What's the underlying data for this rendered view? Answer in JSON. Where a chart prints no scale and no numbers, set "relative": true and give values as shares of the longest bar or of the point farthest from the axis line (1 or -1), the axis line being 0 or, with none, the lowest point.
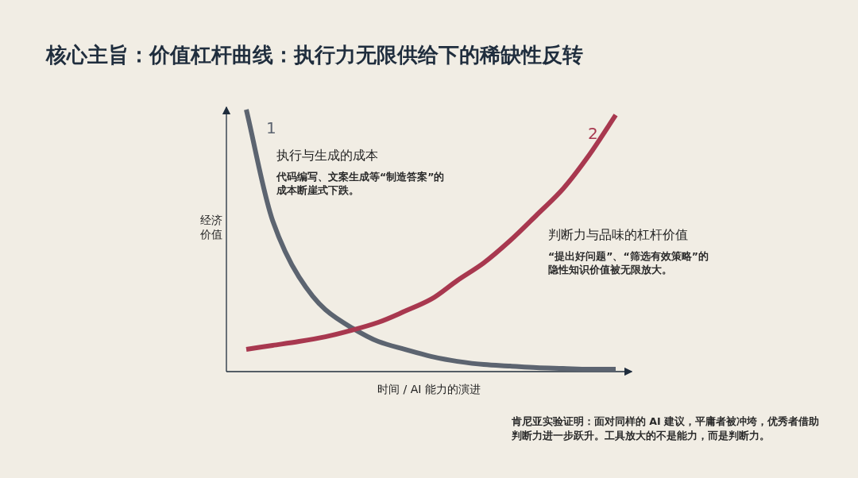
{
  "chart_data": {
    "type": "line",
    "relative": true,
    "title": "核心主旨：价值杠杆曲线：执行力无限供给下的稀缺性反转",
    "xlabel": "时间 / AI 能力的演进",
    "ylabel": "经济价值",
    "categories": [
      null,
      null,
      null,
      null,
      null,
      null,
      null,
      null,
      null,
      null,
      null,
      null,
      null,
      null,
      null
    ],
    "series": [
      {
        "name": "1",
        "color": "#5c6470",
        "values": [
          1.0,
          0.576,
          0.361,
          0.236,
          0.167,
          0.115,
          0.085,
          0.058,
          0.039,
          0.027,
          0.021,
          0.015,
          0.012,
          0.009,
          0.009
        ]
      },
      {
        "name": "2",
        "color": "#a8384f",
        "values": [
          0.085,
          0.1,
          0.115,
          0.133,
          0.158,
          0.188,
          0.23,
          0.276,
          0.348,
          0.415,
          0.5,
          0.597,
          0.697,
          0.827,
          0.979
        ]
      }
    ],
    "annotations": [
      "执行与生成的成本",
      "代码编写、文案生成等“制造答案”的成本断崖式下跌。",
      "判断力与品味的杠杆价值",
      "“提出好问题”、“筛选有效策略”的隐性知识价值被无限放大。",
      "肯尼亚实验证明：面对同样的 AI 建议，平庸者被冲垮，优秀者借助判断力进一步跃升。工具放大的不是能力，而是判断力。"
    ],
    "grid": false,
    "legend": false,
    "marker": "none",
    "line_style": "solid"
  }
}
